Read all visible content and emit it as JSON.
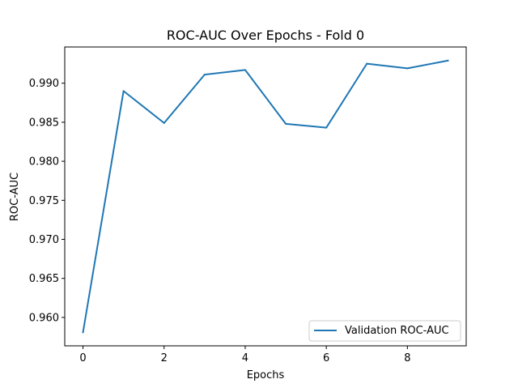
{
  "chart_data": {
    "type": "line",
    "title": "ROC-AUC Over Epochs - Fold 0",
    "xlabel": "Epochs",
    "ylabel": "ROC-AUC",
    "x": [
      0,
      1,
      2,
      3,
      4,
      5,
      6,
      7,
      8,
      9
    ],
    "series": [
      {
        "name": "Validation ROC-AUC",
        "color": "#1f77b4",
        "values": [
          0.9581,
          0.989,
          0.9849,
          0.9911,
          0.9917,
          0.9848,
          0.9843,
          0.9925,
          0.9919,
          0.9929
        ]
      }
    ],
    "xlim": [
      -0.45,
      9.45
    ],
    "ylim": [
      0.95636,
      0.99464
    ],
    "xticks": [
      0,
      2,
      4,
      6,
      8
    ],
    "xtick_labels": [
      "0",
      "2",
      "4",
      "6",
      "8"
    ],
    "yticks": [
      0.96,
      0.965,
      0.97,
      0.975,
      0.98,
      0.985,
      0.99
    ],
    "ytick_labels": [
      "0.960",
      "0.965",
      "0.970",
      "0.975",
      "0.980",
      "0.985",
      "0.990"
    ],
    "grid": false,
    "legend_position": "lower-right"
  }
}
